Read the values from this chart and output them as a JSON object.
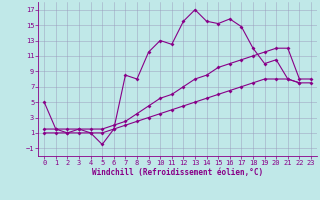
{
  "xlabel": "Windchill (Refroidissement éolien,°C)",
  "background_color": "#c0e8e8",
  "line_color": "#880088",
  "xlim": [
    -0.5,
    23.5
  ],
  "ylim": [
    -2,
    18
  ],
  "xticks": [
    0,
    1,
    2,
    3,
    4,
    5,
    6,
    7,
    8,
    9,
    10,
    11,
    12,
    13,
    14,
    15,
    16,
    17,
    18,
    19,
    20,
    21,
    22,
    23
  ],
  "yticks": [
    -1,
    1,
    3,
    5,
    7,
    9,
    11,
    13,
    15,
    17
  ],
  "line1_x": [
    0,
    1,
    2,
    3,
    4,
    5,
    6,
    7,
    8,
    9,
    10,
    11,
    12,
    13,
    14,
    15,
    16,
    17,
    18,
    19,
    20,
    21,
    22
  ],
  "line1_y": [
    5,
    1.5,
    1,
    1.5,
    1,
    -0.5,
    1.5,
    8.5,
    8,
    11.5,
    13,
    12.5,
    15.5,
    17,
    15.5,
    15.2,
    15.8,
    14.8,
    12,
    10,
    10.5,
    8,
    7.5
  ],
  "line2_x": [
    0,
    1,
    2,
    3,
    4,
    5,
    6,
    7,
    8,
    9,
    10,
    11,
    12,
    13,
    14,
    15,
    16,
    17,
    18,
    19,
    20,
    21,
    22,
    23
  ],
  "line2_y": [
    1.5,
    1.5,
    1.5,
    1.5,
    1.5,
    1.5,
    2,
    2.5,
    3.5,
    4.5,
    5.5,
    6,
    7,
    8,
    8.5,
    9.5,
    10,
    10.5,
    11,
    11.5,
    12,
    12,
    8,
    8
  ],
  "line3_x": [
    0,
    1,
    2,
    3,
    4,
    5,
    6,
    7,
    8,
    9,
    10,
    11,
    12,
    13,
    14,
    15,
    16,
    17,
    18,
    19,
    20,
    21,
    22,
    23
  ],
  "line3_y": [
    1,
    1,
    1,
    1,
    1,
    1,
    1.5,
    2,
    2.5,
    3,
    3.5,
    4,
    4.5,
    5,
    5.5,
    6,
    6.5,
    7,
    7.5,
    8,
    8,
    8,
    7.5,
    7.5
  ],
  "grid_color": "#9999bb",
  "marker": "D",
  "markersize": 2,
  "linewidth": 0.8,
  "tick_fontsize": 5,
  "xlabel_fontsize": 5.5
}
